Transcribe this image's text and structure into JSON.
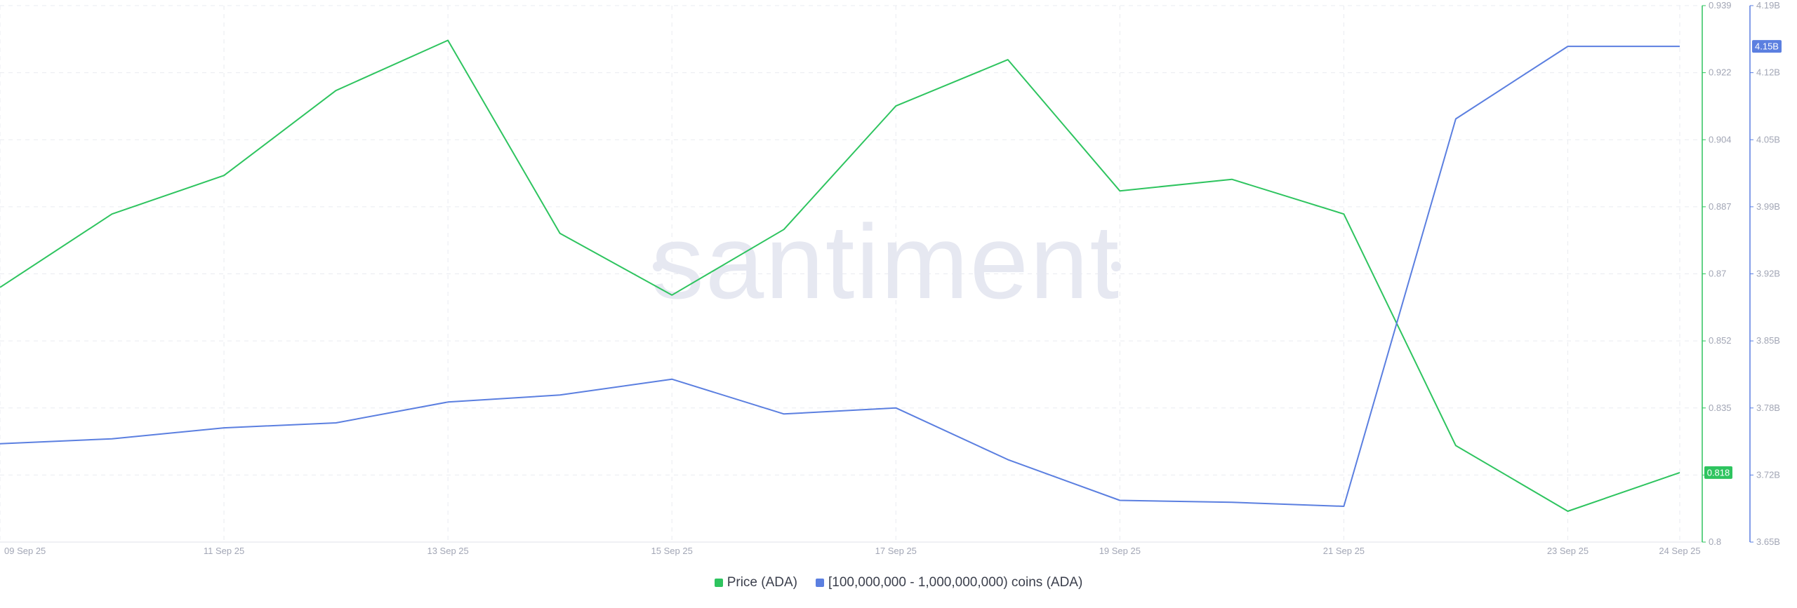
{
  "watermark": "santiment",
  "colors": {
    "price": "#2ec45f",
    "holders": "#5b7fe0",
    "axis_text": "#a2a6b5",
    "grid": "#e9ebf0"
  },
  "legend": {
    "price_label": "Price (ADA)",
    "holders_label": "[100,000,000 - 1,000,000,000) coins (ADA)"
  },
  "chart_data": {
    "type": "line",
    "title": "",
    "x_ticks": [
      "09 Sep 25",
      "11 Sep 25",
      "13 Sep 25",
      "15 Sep 25",
      "17 Sep 25",
      "19 Sep 25",
      "21 Sep 25",
      "23 Sep 25",
      "24 Sep 25"
    ],
    "x": [
      "09 Sep 25",
      "10 Sep 25",
      "11 Sep 25",
      "12 Sep 25",
      "13 Sep 25",
      "14 Sep 25",
      "15 Sep 25",
      "16 Sep 25",
      "17 Sep 25",
      "18 Sep 25",
      "19 Sep 25",
      "20 Sep 25",
      "21 Sep 25",
      "22 Sep 25",
      "23 Sep 25",
      "24 Sep 25"
    ],
    "price_axis": {
      "ticks": [
        "0.939",
        "0.922",
        "0.904",
        "0.887",
        "0.87",
        "0.852",
        "0.835",
        "0.818",
        "0.8"
      ],
      "range": [
        0.8,
        0.939
      ]
    },
    "holders_axis": {
      "ticks": [
        "4.19B",
        "4.12B",
        "4.05B",
        "3.99B",
        "3.92B",
        "3.85B",
        "3.78B",
        "3.72B",
        "3.65B"
      ],
      "range": [
        3.65,
        4.19
      ],
      "unit": "B"
    },
    "series": [
      {
        "name": "Price (ADA)",
        "axis": "price",
        "values": [
          0.866,
          0.885,
          0.895,
          0.917,
          0.93,
          0.88,
          0.864,
          0.881,
          0.913,
          0.925,
          0.891,
          0.894,
          0.885,
          0.825,
          0.808,
          0.818
        ],
        "last_label": "0.818"
      },
      {
        "name": "[100,000,000 - 1,000,000,000) coins (ADA)",
        "axis": "holders",
        "values": [
          3.749,
          3.754,
          3.765,
          3.77,
          3.791,
          3.798,
          3.814,
          3.779,
          3.785,
          3.733,
          3.692,
          3.69,
          3.686,
          4.076,
          4.149,
          4.149
        ],
        "last_label": "4.15B"
      }
    ],
    "grid": true,
    "legend_position": "bottom-center"
  }
}
